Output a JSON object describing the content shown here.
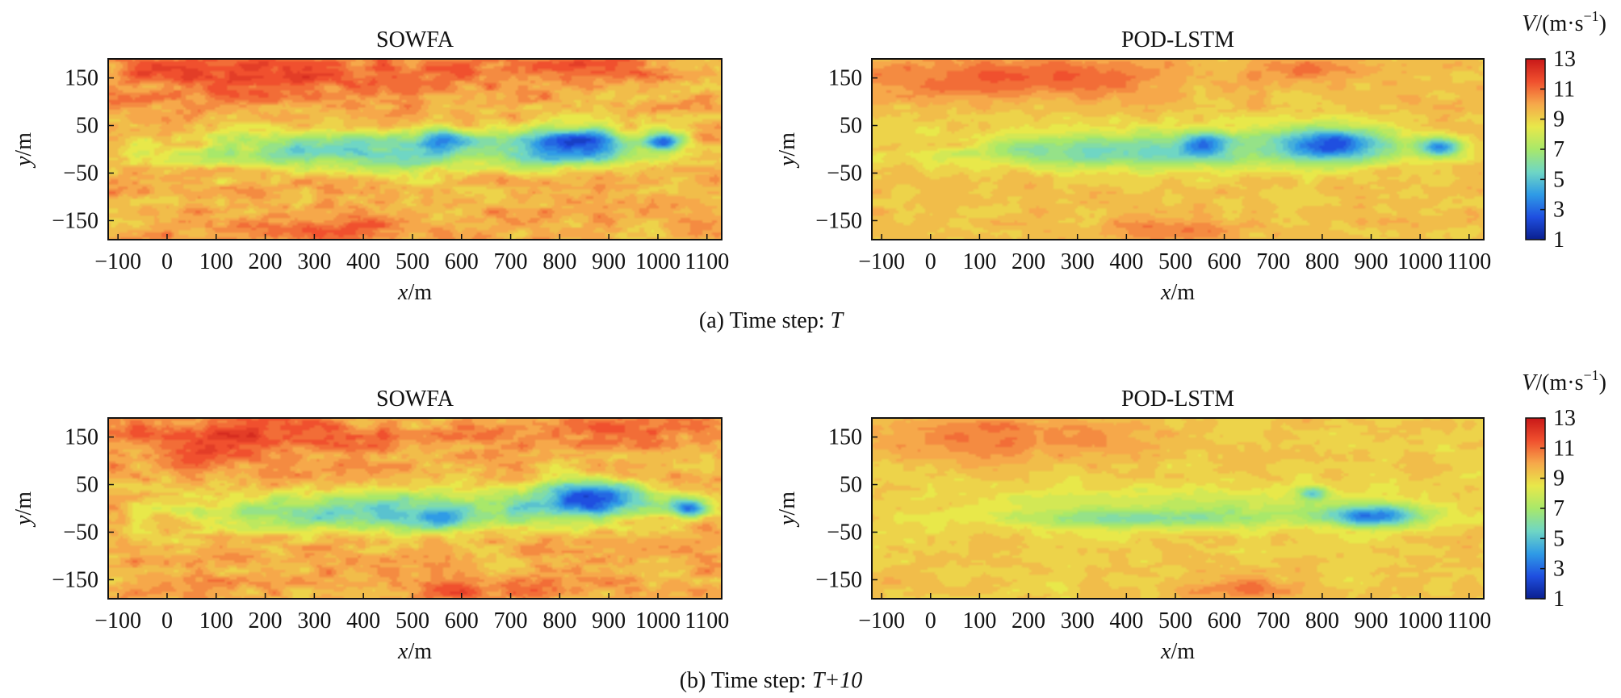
{
  "figure": {
    "captions": [
      "(a) Time step: ",
      "(b) Time step: "
    ],
    "caption_vars": [
      "T",
      "T+10"
    ],
    "colorbar": {
      "label_var": "V",
      "label_unit": "/(m·s",
      "label_exp": "−1",
      "label_close": ")",
      "ticks": [
        "13",
        "11",
        "9",
        "7",
        "5",
        "3",
        "1"
      ],
      "range": [
        1,
        13
      ],
      "colors": [
        "#0a1f8f",
        "#1f4fe0",
        "#2f9be6",
        "#6fd6c4",
        "#a8e86a",
        "#e8e84a",
        "#f6a84a",
        "#f0502e",
        "#c81818"
      ]
    }
  },
  "chart_data": [
    {
      "type": "heatmap",
      "title": "SOWFA",
      "panel": "(a)",
      "xlabel_var": "x",
      "xlabel_unit": "/m",
      "ylabel_var": "y",
      "ylabel_unit": "/m",
      "xlim": [
        -120,
        1130
      ],
      "ylim": [
        -190,
        190
      ],
      "xticks": [
        "−100",
        "0",
        "100",
        "200",
        "300",
        "400",
        "500",
        "600",
        "700",
        "800",
        "900",
        "1000",
        "1100"
      ],
      "yticks": [
        "150",
        "50",
        "−50",
        "−150"
      ],
      "field": {
        "background": 9.8,
        "blobs": [
          {
            "x": 200,
            "y": 160,
            "rx": 450,
            "ry": 70,
            "v": 11.6
          },
          {
            "x": 800,
            "y": 170,
            "rx": 250,
            "ry": 40,
            "v": 11.4
          },
          {
            "x": 300,
            "y": -170,
            "rx": 250,
            "ry": 30,
            "v": 11.0
          },
          {
            "x": 500,
            "y": 0,
            "rx": 520,
            "ry": 60,
            "v": 7.4
          },
          {
            "x": 400,
            "y": -5,
            "rx": 380,
            "ry": 38,
            "v": 5.3
          },
          {
            "x": 830,
            "y": 10,
            "rx": 140,
            "ry": 45,
            "v": 2.4
          },
          {
            "x": 560,
            "y": 20,
            "rx": 60,
            "ry": 22,
            "v": 3.1
          },
          {
            "x": 1010,
            "y": 15,
            "rx": 50,
            "ry": 25,
            "v": 3.0
          },
          {
            "x": 50,
            "y": 10,
            "rx": 60,
            "ry": 12,
            "v": 9.6
          }
        ]
      }
    },
    {
      "type": "heatmap",
      "title": "POD-LSTM",
      "panel": "(a)",
      "xlabel_var": "x",
      "xlabel_unit": "/m",
      "ylabel_var": "y",
      "ylabel_unit": "/m",
      "xlim": [
        -120,
        1130
      ],
      "ylim": [
        -190,
        190
      ],
      "xticks": [
        "−100",
        "0",
        "100",
        "200",
        "300",
        "400",
        "500",
        "600",
        "700",
        "800",
        "900",
        "1000",
        "1100"
      ],
      "yticks": [
        "150",
        "50",
        "−50",
        "−150"
      ],
      "field": {
        "background": 9.4,
        "blobs": [
          {
            "x": 150,
            "y": 150,
            "rx": 380,
            "ry": 60,
            "v": 11.3
          },
          {
            "x": 780,
            "y": 170,
            "rx": 180,
            "ry": 30,
            "v": 10.8
          },
          {
            "x": 500,
            "y": -170,
            "rx": 160,
            "ry": 30,
            "v": 10.8
          },
          {
            "x": 500,
            "y": 5,
            "rx": 520,
            "ry": 58,
            "v": 7.3
          },
          {
            "x": 400,
            "y": -5,
            "rx": 380,
            "ry": 36,
            "v": 5.6
          },
          {
            "x": 820,
            "y": 10,
            "rx": 150,
            "ry": 45,
            "v": 2.6
          },
          {
            "x": 560,
            "y": 10,
            "rx": 60,
            "ry": 30,
            "v": 3.1
          },
          {
            "x": 1040,
            "y": 5,
            "rx": 60,
            "ry": 25,
            "v": 3.4
          },
          {
            "x": 50,
            "y": 10,
            "rx": 60,
            "ry": 12,
            "v": 9.3
          }
        ]
      }
    },
    {
      "type": "heatmap",
      "title": "SOWFA",
      "panel": "(b)",
      "xlabel_var": "x",
      "xlabel_unit": "/m",
      "ylabel_var": "y",
      "ylabel_unit": "/m",
      "xlim": [
        -120,
        1130
      ],
      "ylim": [
        -190,
        190
      ],
      "xticks": [
        "−100",
        "0",
        "100",
        "200",
        "300",
        "400",
        "500",
        "600",
        "700",
        "800",
        "900",
        "1000",
        "1100"
      ],
      "yticks": [
        "150",
        "50",
        "−50",
        "−150"
      ],
      "field": {
        "background": 9.8,
        "blobs": [
          {
            "x": 150,
            "y": 150,
            "rx": 350,
            "ry": 70,
            "v": 11.6
          },
          {
            "x": 850,
            "y": 165,
            "rx": 250,
            "ry": 40,
            "v": 11.2
          },
          {
            "x": 620,
            "y": -170,
            "rx": 180,
            "ry": 35,
            "v": 11.2
          },
          {
            "x": 520,
            "y": 0,
            "rx": 540,
            "ry": 60,
            "v": 7.4
          },
          {
            "x": 420,
            "y": -10,
            "rx": 380,
            "ry": 38,
            "v": 5.3
          },
          {
            "x": 860,
            "y": 20,
            "rx": 150,
            "ry": 45,
            "v": 2.4
          },
          {
            "x": 560,
            "y": -20,
            "rx": 60,
            "ry": 25,
            "v": 3.0
          },
          {
            "x": 1060,
            "y": 0,
            "rx": 50,
            "ry": 25,
            "v": 3.2
          },
          {
            "x": 60,
            "y": 10,
            "rx": 70,
            "ry": 12,
            "v": 9.6
          }
        ]
      }
    },
    {
      "type": "heatmap",
      "title": "POD-LSTM",
      "panel": "(b)",
      "xlabel_var": "x",
      "xlabel_unit": "/m",
      "ylabel_var": "y",
      "ylabel_unit": "/m",
      "xlim": [
        -120,
        1130
      ],
      "ylim": [
        -190,
        190
      ],
      "xticks": [
        "−100",
        "0",
        "100",
        "200",
        "300",
        "400",
        "500",
        "600",
        "700",
        "800",
        "900",
        "1000",
        "1100"
      ],
      "yticks": [
        "150",
        "50",
        "−50",
        "−150"
      ],
      "field": {
        "background": 9.2,
        "blobs": [
          {
            "x": 150,
            "y": 150,
            "rx": 350,
            "ry": 60,
            "v": 10.8
          },
          {
            "x": 650,
            "y": -170,
            "rx": 150,
            "ry": 30,
            "v": 10.8
          },
          {
            "x": 500,
            "y": 0,
            "rx": 540,
            "ry": 58,
            "v": 7.5
          },
          {
            "x": 450,
            "y": -20,
            "rx": 330,
            "ry": 22,
            "v": 6.0
          },
          {
            "x": 900,
            "y": -15,
            "rx": 140,
            "ry": 30,
            "v": 3.5
          },
          {
            "x": 780,
            "y": 30,
            "rx": 40,
            "ry": 20,
            "v": 5.0
          },
          {
            "x": 30,
            "y": 10,
            "rx": 50,
            "ry": 12,
            "v": 9.2
          }
        ]
      }
    }
  ]
}
